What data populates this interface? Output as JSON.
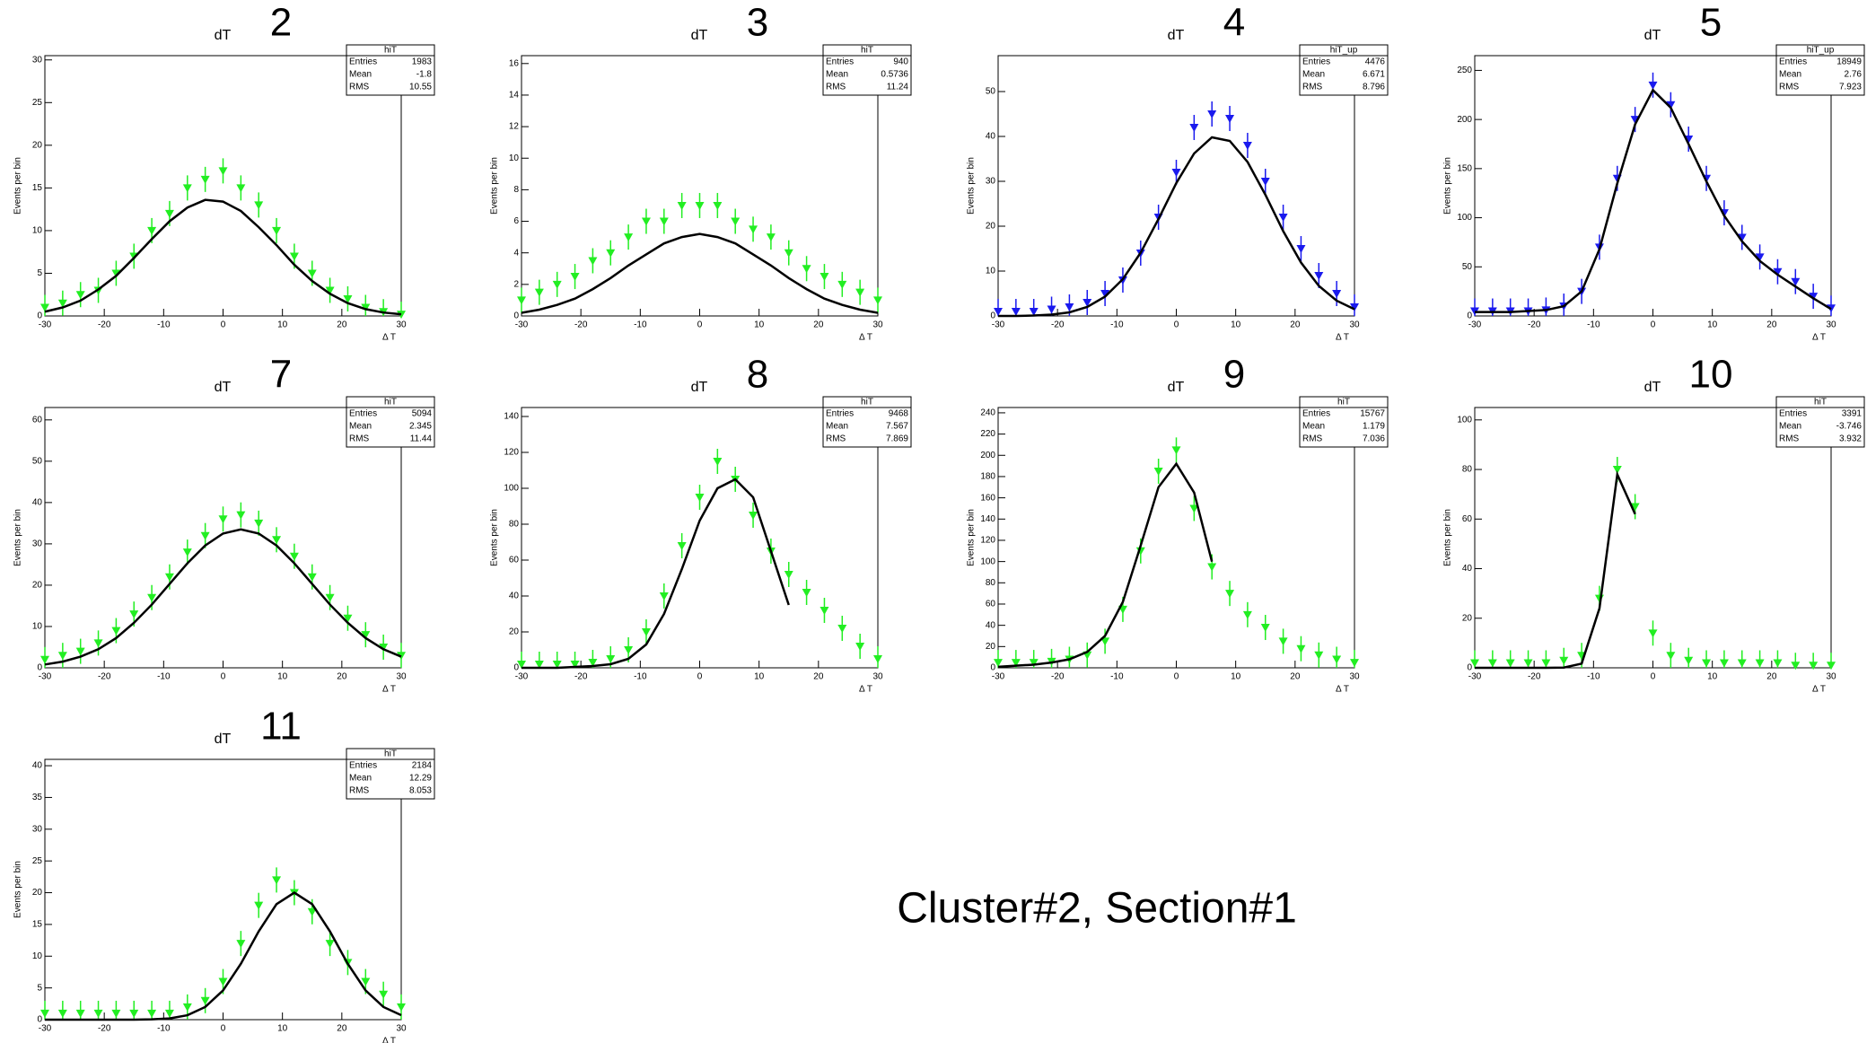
{
  "chart_data": [
    {
      "type": "scatter",
      "label": "2",
      "title": "dT",
      "xlabel": "Δ T",
      "ylabel": "Events per bin",
      "x": [
        -30,
        -27,
        -24,
        -21,
        -18,
        -15,
        -12,
        -9,
        -6,
        -3,
        0,
        3,
        6,
        9,
        12,
        15,
        18,
        21,
        24,
        27,
        30
      ],
      "series": [
        {
          "style": "markers",
          "color": "#22ee22",
          "values": [
            1,
            1.5,
            2.5,
            3,
            5,
            7,
            10,
            12,
            15,
            16,
            17,
            15,
            13,
            10,
            7,
            5,
            3,
            2,
            1,
            0.5,
            0.2
          ]
        },
        {
          "style": "line",
          "color": "#000000",
          "values": [
            0.5,
            1,
            1.8,
            3.1,
            4.7,
            6.8,
            9,
            11.1,
            12.7,
            13.6,
            13.4,
            12.3,
            10.4,
            8.3,
            6,
            4.1,
            2.6,
            1.5,
            0.8,
            0.4,
            0.2
          ]
        }
      ],
      "xlim": [
        -30,
        30
      ],
      "xticks": [
        -30,
        -20,
        -10,
        0,
        10,
        20,
        30
      ],
      "ylim": [
        0,
        30.5
      ],
      "yticks": [
        0,
        5,
        10,
        15,
        20,
        25,
        30
      ],
      "stats": {
        "name": "hiT",
        "labels": [
          "Entries",
          "Mean",
          "RMS"
        ],
        "values": [
          1983,
          -1.8,
          10.55
        ]
      }
    },
    {
      "type": "scatter",
      "label": "3",
      "title": "dT",
      "xlabel": "Δ T",
      "ylabel": "Events per bin",
      "x": [
        -30,
        -27,
        -24,
        -21,
        -18,
        -15,
        -12,
        -9,
        -6,
        -3,
        0,
        3,
        6,
        9,
        12,
        15,
        18,
        21,
        24,
        27,
        30
      ],
      "series": [
        {
          "style": "markers",
          "color": "#22ee22",
          "values": [
            1,
            1.5,
            2,
            2.5,
            3.5,
            4,
            5,
            6,
            6,
            7,
            7,
            7,
            6,
            5.5,
            5,
            4,
            3,
            2.5,
            2,
            1.5,
            1
          ]
        },
        {
          "style": "line",
          "color": "#000000",
          "values": [
            0.2,
            0.4,
            0.7,
            1.1,
            1.7,
            2.4,
            3.2,
            3.9,
            4.6,
            5,
            5.2,
            5,
            4.6,
            3.9,
            3.2,
            2.4,
            1.7,
            1.1,
            0.7,
            0.4,
            0.2
          ]
        }
      ],
      "xlim": [
        -30,
        30
      ],
      "xticks": [
        -30,
        -20,
        -10,
        0,
        10,
        20,
        30
      ],
      "ylim": [
        0,
        16.5
      ],
      "yticks": [
        0,
        2,
        4,
        6,
        8,
        10,
        12,
        14,
        16
      ],
      "stats": {
        "name": "hiT",
        "labels": [
          "Entries",
          "Mean",
          "RMS"
        ],
        "values": [
          940,
          0.5736,
          11.24
        ]
      }
    },
    {
      "type": "scatter",
      "label": "4",
      "title": "dT",
      "xlabel": "Δ T",
      "ylabel": "Events per bin",
      "x": [
        -30,
        -27,
        -24,
        -21,
        -18,
        -15,
        -12,
        -9,
        -6,
        -3,
        0,
        3,
        6,
        9,
        12,
        15,
        18,
        21,
        24,
        27,
        30
      ],
      "series": [
        {
          "style": "markers",
          "color": "#1a1aee",
          "values": [
            1,
            1,
            1,
            1.5,
            2,
            3,
            5,
            8,
            14,
            22,
            32,
            42,
            45,
            44,
            38,
            30,
            22,
            15,
            9,
            5,
            2
          ]
        },
        {
          "style": "line",
          "color": "#000000",
          "values": [
            0,
            0,
            0.1,
            0.3,
            0.8,
            2,
            4.3,
            8.2,
            14.1,
            21.6,
            29.6,
            36.2,
            39.8,
            39,
            34.3,
            27,
            18.9,
            11.9,
            6.7,
            3.4,
            1.5
          ]
        }
      ],
      "xlim": [
        -30,
        30
      ],
      "xticks": [
        -30,
        -20,
        -10,
        0,
        10,
        20,
        30
      ],
      "ylim": [
        0,
        58
      ],
      "yticks": [
        0,
        10,
        20,
        30,
        40,
        50
      ],
      "stats": {
        "name": "hiT_up",
        "labels": [
          "Entries",
          "Mean",
          "RMS"
        ],
        "values": [
          4476,
          6.671,
          8.796
        ]
      }
    },
    {
      "type": "scatter",
      "label": "5",
      "title": "dT",
      "xlabel": "Δ T",
      "ylabel": "Events per bin",
      "x": [
        -30,
        -27,
        -24,
        -21,
        -18,
        -15,
        -12,
        -9,
        -6,
        -3,
        0,
        3,
        6,
        9,
        12,
        15,
        18,
        21,
        24,
        27,
        30
      ],
      "series": [
        {
          "style": "markers",
          "color": "#1a1aee",
          "values": [
            5,
            5,
            5,
            5,
            6,
            10,
            25,
            70,
            140,
            200,
            235,
            215,
            180,
            140,
            105,
            80,
            60,
            45,
            35,
            20,
            8
          ]
        },
        {
          "style": "line",
          "color": "#000000",
          "values": [
            4,
            4,
            4,
            5,
            6,
            10,
            25,
            68,
            135,
            195,
            230,
            212,
            175,
            137,
            102,
            76,
            56,
            42,
            30,
            18,
            7
          ]
        }
      ],
      "xlim": [
        -30,
        30
      ],
      "xticks": [
        -30,
        -20,
        -10,
        0,
        10,
        20,
        30
      ],
      "ylim": [
        0,
        265
      ],
      "yticks": [
        0,
        50,
        100,
        150,
        200,
        250
      ],
      "stats": {
        "name": "hiT_up",
        "labels": [
          "Entries",
          "Mean",
          "RMS"
        ],
        "values": [
          18949,
          2.76,
          7.923
        ]
      }
    },
    {
      "type": "scatter",
      "label": "7",
      "title": "dT",
      "xlabel": "Δ T",
      "ylabel": "Events per bin",
      "x": [
        -30,
        -27,
        -24,
        -21,
        -18,
        -15,
        -12,
        -9,
        -6,
        -3,
        0,
        3,
        6,
        9,
        12,
        15,
        18,
        21,
        24,
        27,
        30
      ],
      "series": [
        {
          "style": "markers",
          "color": "#22ee22",
          "values": [
            2,
            3,
            4,
            6,
            9,
            13,
            17,
            22,
            28,
            32,
            36,
            37,
            35,
            31,
            27,
            22,
            17,
            12,
            8,
            5,
            3
          ]
        },
        {
          "style": "line",
          "color": "#000000",
          "values": [
            0.8,
            1.5,
            2.7,
            4.5,
            7.2,
            10.9,
            15.3,
            20.3,
            25.3,
            29.6,
            32.5,
            33.5,
            32.5,
            29.6,
            25.3,
            20.3,
            15.3,
            10.9,
            7.2,
            4.5,
            2.7
          ]
        }
      ],
      "xlim": [
        -30,
        30
      ],
      "xticks": [
        -30,
        -20,
        -10,
        0,
        10,
        20,
        30
      ],
      "ylim": [
        0,
        63
      ],
      "yticks": [
        0,
        10,
        20,
        30,
        40,
        50,
        60
      ],
      "stats": {
        "name": "hiT",
        "labels": [
          "Entries",
          "Mean",
          "RMS"
        ],
        "values": [
          5094,
          2.345,
          11.44
        ]
      }
    },
    {
      "type": "scatter",
      "label": "8",
      "title": "dT",
      "xlabel": "Δ T",
      "ylabel": "Events per bin",
      "x": [
        -30,
        -27,
        -24,
        -21,
        -18,
        -15,
        -12,
        -9,
        -6,
        -3,
        0,
        3,
        6,
        9,
        12,
        15,
        18,
        21,
        24,
        27,
        30
      ],
      "series": [
        {
          "style": "markers",
          "color": "#22ee22",
          "values": [
            2,
            2,
            2,
            2,
            3,
            5,
            10,
            20,
            40,
            68,
            95,
            115,
            105,
            85,
            65,
            52,
            42,
            32,
            22,
            12,
            5
          ]
        },
        {
          "style": "line",
          "color": "#000000",
          "values": [
            0,
            0,
            0,
            0.5,
            1,
            2,
            5,
            13,
            30,
            55,
            82,
            100,
            105,
            95,
            65,
            35,
            null,
            null,
            null,
            null,
            null
          ]
        }
      ],
      "xlim": [
        -30,
        30
      ],
      "xticks": [
        -30,
        -20,
        -10,
        0,
        10,
        20,
        30
      ],
      "ylim": [
        0,
        145
      ],
      "yticks": [
        0,
        20,
        40,
        60,
        80,
        100,
        120,
        140
      ],
      "stats": {
        "name": "hiT",
        "labels": [
          "Entries",
          "Mean",
          "RMS"
        ],
        "values": [
          9468,
          7.567,
          7.869
        ]
      }
    },
    {
      "type": "scatter",
      "label": "9",
      "title": "dT",
      "xlabel": "Δ T",
      "ylabel": "Events per bin",
      "x": [
        -30,
        -27,
        -24,
        -21,
        -18,
        -15,
        -12,
        -9,
        -6,
        -3,
        0,
        3,
        6,
        9,
        12,
        15,
        18,
        21,
        24,
        27,
        30
      ],
      "series": [
        {
          "style": "markers",
          "color": "#22ee22",
          "values": [
            5,
            5,
            5,
            6,
            8,
            12,
            25,
            55,
            110,
            185,
            205,
            150,
            95,
            70,
            50,
            38,
            25,
            18,
            12,
            8,
            5
          ]
        },
        {
          "style": "line",
          "color": "#000000",
          "values": [
            1,
            2,
            3,
            5,
            8,
            15,
            30,
            62,
            115,
            170,
            192,
            165,
            100,
            null,
            null,
            null,
            null,
            null,
            null,
            null,
            null
          ]
        }
      ],
      "xlim": [
        -30,
        30
      ],
      "xticks": [
        -30,
        -20,
        -10,
        0,
        10,
        20,
        30
      ],
      "ylim": [
        0,
        245
      ],
      "yticks": [
        0,
        20,
        40,
        60,
        80,
        100,
        120,
        140,
        160,
        180,
        200,
        220,
        240
      ],
      "stats": {
        "name": "hiT",
        "labels": [
          "Entries",
          "Mean",
          "RMS"
        ],
        "values": [
          15767,
          1.179,
          7.036
        ]
      }
    },
    {
      "type": "scatter",
      "label": "10",
      "title": "dT",
      "xlabel": "Δ T",
      "ylabel": "Events per bin",
      "x": [
        -30,
        -27,
        -24,
        -21,
        -18,
        -15,
        -12,
        -9,
        -6,
        -3,
        0,
        3,
        6,
        9,
        12,
        15,
        18,
        21,
        24,
        27,
        30
      ],
      "series": [
        {
          "style": "markers",
          "color": "#22ee22",
          "values": [
            2,
            2,
            2,
            2,
            2,
            3,
            5,
            28,
            80,
            65,
            14,
            5,
            3,
            2,
            2,
            2,
            2,
            2,
            1,
            1,
            1
          ]
        },
        {
          "style": "line",
          "color": "#000000",
          "values": [
            0,
            0,
            0,
            0,
            0,
            0.1,
            1.7,
            24,
            78,
            62,
            null,
            null,
            null,
            null,
            null,
            null,
            null,
            null,
            null,
            null,
            null
          ]
        }
      ],
      "xlim": [
        -30,
        30
      ],
      "xticks": [
        -30,
        -20,
        -10,
        0,
        10,
        20,
        30
      ],
      "ylim": [
        0,
        105
      ],
      "yticks": [
        0,
        20,
        40,
        60,
        80,
        100
      ],
      "stats": {
        "name": "hiT",
        "labels": [
          "Entries",
          "Mean",
          "RMS"
        ],
        "values": [
          3391,
          -3.746,
          3.932
        ]
      }
    },
    {
      "type": "scatter",
      "label": "11",
      "title": "dT",
      "xlabel": "Δ T",
      "ylabel": "Events per bin",
      "x": [
        -30,
        -27,
        -24,
        -21,
        -18,
        -15,
        -12,
        -9,
        -6,
        -3,
        0,
        3,
        6,
        9,
        12,
        15,
        18,
        21,
        24,
        27,
        30
      ],
      "series": [
        {
          "style": "markers",
          "color": "#22ee22",
          "values": [
            1,
            1,
            1,
            1,
            1,
            1,
            1,
            1,
            2,
            3,
            6,
            12,
            18,
            22,
            20,
            17,
            12,
            9,
            6,
            4,
            2
          ]
        },
        {
          "style": "line",
          "color": "#000000",
          "values": [
            0,
            0,
            0,
            0,
            0,
            0,
            0.05,
            0.2,
            0.7,
            2,
            4.6,
            8.8,
            13.9,
            18.2,
            20,
            18.2,
            13.9,
            8.8,
            4.6,
            2,
            0.7
          ]
        }
      ],
      "xlim": [
        -30,
        30
      ],
      "xticks": [
        -30,
        -20,
        -10,
        0,
        10,
        20,
        30
      ],
      "ylim": [
        0,
        41
      ],
      "yticks": [
        0,
        5,
        10,
        15,
        20,
        25,
        30,
        35,
        40
      ],
      "stats": {
        "name": "hiT",
        "labels": [
          "Entries",
          "Mean",
          "RMS"
        ],
        "values": [
          2184,
          12.29,
          8.053
        ]
      }
    }
  ],
  "caption": "Cluster#2, Section#1"
}
